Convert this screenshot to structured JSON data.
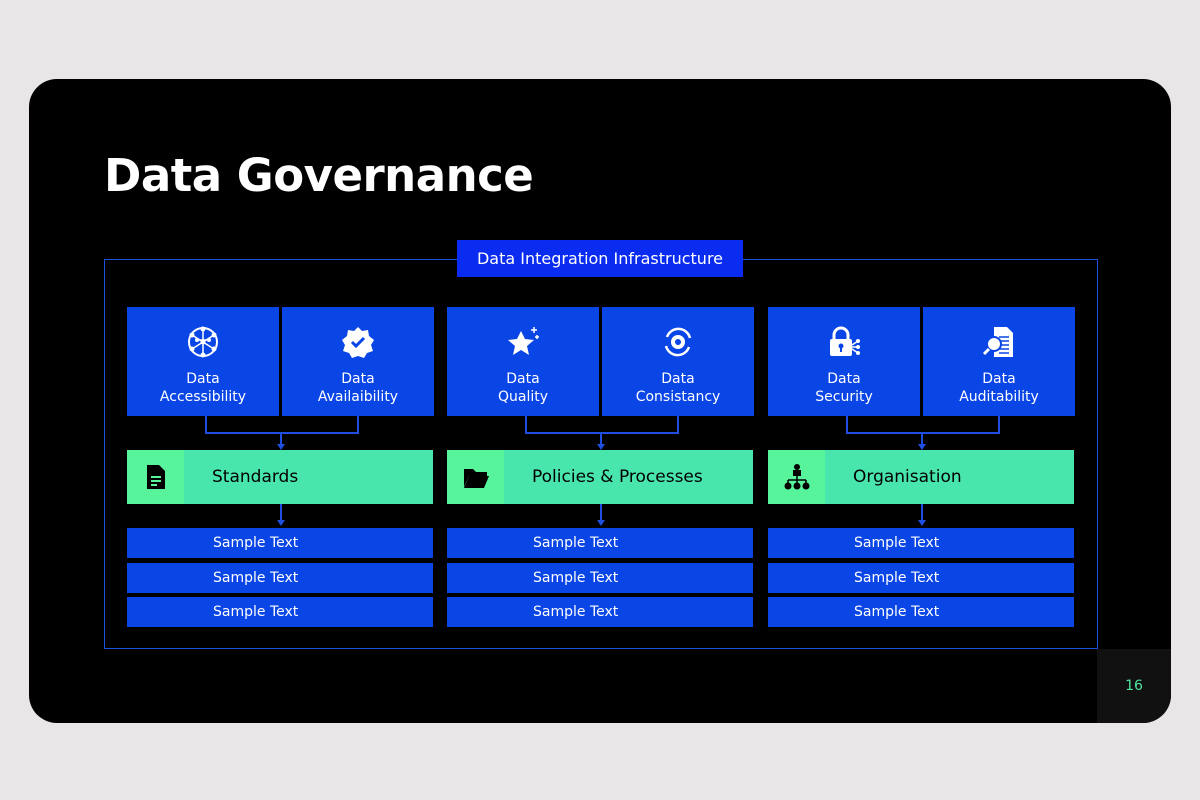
{
  "title": "Data Governance",
  "frame_label": "Data Integration Infrastructure",
  "page_number": "16",
  "colors": {
    "background": "#000000",
    "blue": "#0a45e6",
    "green": "#48e6ad",
    "page_number": "#4ee6a0"
  },
  "columns": [
    {
      "pillars": [
        {
          "line1": "Data",
          "line2": "Accessibility",
          "icon": "network-icon"
        },
        {
          "line1": "Data",
          "line2": "Availaibility",
          "icon": "verified-badge-icon"
        }
      ],
      "category": {
        "label": "Standards",
        "icon": "document-icon"
      },
      "items": [
        "Sample Text",
        "Sample Text",
        "Sample Text"
      ]
    },
    {
      "pillars": [
        {
          "line1": "Data",
          "line2": "Quality",
          "icon": "star-icon"
        },
        {
          "line1": "Data",
          "line2": "Consistancy",
          "icon": "gear-cycle-icon"
        }
      ],
      "category": {
        "label": "Policies & Processes",
        "icon": "folder-icon"
      },
      "items": [
        "Sample Text",
        "Sample Text",
        "Sample Text"
      ]
    },
    {
      "pillars": [
        {
          "line1": "Data",
          "line2": "Security",
          "icon": "lock-icon"
        },
        {
          "line1": "Data",
          "line2": "Auditability",
          "icon": "audit-search-icon"
        }
      ],
      "category": {
        "label": "Organisation",
        "icon": "org-chart-icon"
      },
      "items": [
        "Sample Text",
        "Sample Text",
        "Sample Text"
      ]
    }
  ]
}
